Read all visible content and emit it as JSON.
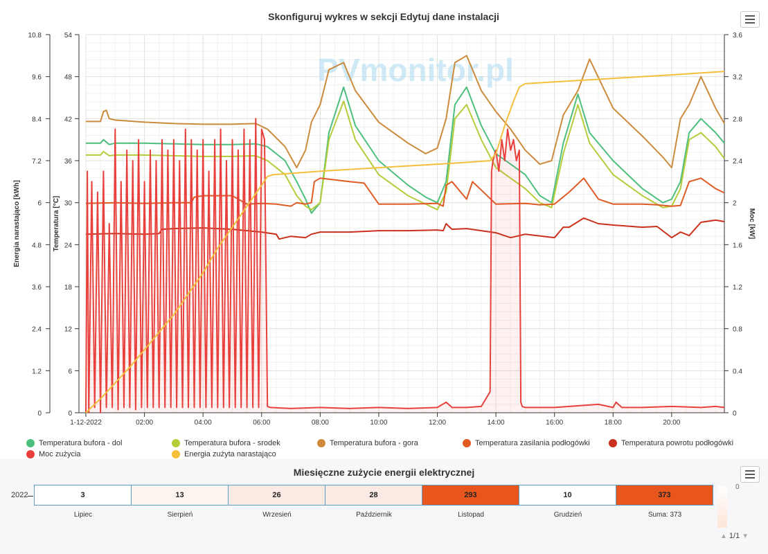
{
  "main_chart": {
    "title": "Skonfiguruj wykres w sekcji Edytuj dane instalacji",
    "watermark": "PVmonitor.pl",
    "left_axis_label": "Energia narastająco [kWh]",
    "temp_axis_label": "Temperatura [°C]",
    "right_axis_label": "Moc [kW]",
    "menu_icon": "hamburger-menu-icon"
  },
  "chart_data": [
    {
      "type": "line",
      "title": "Skonfiguruj wykres w sekcji Edytuj dane instalacji",
      "x_unit": "hour",
      "xlim": [
        0,
        21.8
      ],
      "x_tick_labels": [
        "1-12-2022",
        "02:00",
        "04:00",
        "06:00",
        "08:00",
        "10:00",
        "12:00",
        "14:00",
        "16:00",
        "18:00",
        "20:00"
      ],
      "axes": {
        "energy": {
          "label": "Energia narastająco [kWh]",
          "ylim": [
            0,
            10.8
          ],
          "ticks": [
            "0",
            "1.2",
            "2.4",
            "3.6",
            "4.8",
            "6",
            "7.2",
            "8.4",
            "9.6",
            "10.8"
          ]
        },
        "temperature": {
          "label": "Temperatura [°C]",
          "ylim": [
            0,
            54
          ],
          "ticks": [
            "0",
            "6",
            "12",
            "18",
            "24",
            "30",
            "36",
            "42",
            "48",
            "54"
          ]
        },
        "power": {
          "label": "Moc [kW]",
          "ylim": [
            0,
            3.6
          ],
          "ticks": [
            "0",
            "0.4",
            "0.8",
            "1.2",
            "1.6",
            "2",
            "2.4",
            "2.8",
            "3.2",
            "3.6"
          ]
        }
      },
      "grid": true,
      "legend_position": "bottom",
      "series": [
        {
          "name": "Temperatura bufora - dol",
          "axis": "temperature",
          "color": "#4cbf7f",
          "x": [
            0,
            0.5,
            0.6,
            0.8,
            1,
            2,
            3,
            4,
            5,
            5.8,
            6.2,
            6.8,
            7.2,
            7.5,
            7.7,
            8,
            8.3,
            8.8,
            9.2,
            10,
            11,
            11.6,
            12,
            12.3,
            12.6,
            13,
            13.5,
            14,
            14.5,
            15,
            15.5,
            15.9,
            16.3,
            16.8,
            17.2,
            18,
            19,
            19.7,
            20,
            20.3,
            20.6,
            21,
            21.5,
            21.8
          ],
          "y": [
            38.5,
            38.5,
            39,
            38.3,
            38.5,
            38.5,
            38.4,
            38.3,
            38.3,
            38.4,
            38,
            36,
            33,
            30.5,
            28.5,
            30,
            40,
            46.5,
            41,
            36,
            32.5,
            30.8,
            30,
            33,
            44,
            46.5,
            41,
            37,
            35.5,
            34,
            31,
            30,
            38.5,
            45.5,
            40,
            36,
            32,
            30,
            30.5,
            33,
            40,
            42,
            40,
            38.5
          ]
        },
        {
          "name": "Temperatura bufora - srodek",
          "axis": "temperature",
          "color": "#b5cc3a",
          "x": [
            0,
            0.5,
            0.6,
            0.8,
            1,
            2,
            3,
            4,
            5,
            5.8,
            6.2,
            6.8,
            7.2,
            7.5,
            7.7,
            8,
            8.3,
            8.8,
            9.2,
            10,
            11,
            11.6,
            12,
            12.3,
            12.6,
            13,
            13.5,
            14,
            14.5,
            15,
            15.5,
            15.9,
            16.3,
            16.8,
            17.2,
            18,
            19,
            19.7,
            20,
            20.3,
            20.6,
            21,
            21.5,
            21.8
          ],
          "y": [
            36.8,
            36.8,
            37.3,
            36.7,
            36.8,
            36.8,
            36.7,
            36.6,
            36.6,
            36.7,
            36,
            34,
            31,
            29.5,
            29,
            30,
            39,
            44.5,
            39,
            34,
            31,
            29.8,
            29,
            31.5,
            42,
            44,
            39,
            35,
            33.5,
            32,
            30,
            29.3,
            37,
            44,
            38.5,
            34,
            31,
            29.3,
            29.5,
            32,
            39,
            40,
            38,
            36.3
          ]
        },
        {
          "name": "Temperatura bufora - gora",
          "axis": "temperature",
          "color": "#cc8b3c",
          "x": [
            0,
            0.5,
            0.6,
            0.7,
            0.8,
            1,
            2,
            3,
            4,
            5,
            5.8,
            6.2,
            6.8,
            7.2,
            7.5,
            7.7,
            8,
            8.3,
            8.8,
            9.2,
            10,
            11,
            11.6,
            12,
            12.3,
            12.6,
            13,
            13.5,
            14,
            14.5,
            15,
            15.5,
            15.9,
            16.3,
            16.8,
            17.2,
            18,
            19,
            19.7,
            20,
            20.3,
            20.6,
            21,
            21.5,
            21.8
          ],
          "y": [
            41.6,
            41.6,
            43,
            43.2,
            42,
            41.8,
            41.5,
            41.3,
            41.2,
            41.2,
            41.3,
            40.5,
            38,
            35,
            37.5,
            41.5,
            44,
            49,
            50,
            46,
            41.5,
            38.5,
            37,
            37.8,
            42,
            50,
            51,
            46,
            43,
            40.5,
            37.5,
            35.5,
            36,
            42.5,
            46,
            50.5,
            43.5,
            39.5,
            36.5,
            35,
            42,
            44,
            48,
            43.5,
            41.3
          ]
        },
        {
          "name": "Temperatura zasilania podłogówki",
          "axis": "temperature",
          "color": "#e05a24",
          "x": [
            0,
            1,
            2,
            3,
            3.6,
            3.7,
            4,
            5,
            5.5,
            6,
            6.5,
            7,
            7.2,
            7.5,
            7.7,
            7.8,
            8,
            9,
            9.5,
            10,
            11,
            12,
            12.2,
            12.3,
            12.5,
            13,
            13.2,
            14,
            15,
            15.5,
            16,
            16.5,
            17,
            17.5,
            18,
            19,
            19.5,
            20,
            20.3,
            20.6,
            21,
            21.5,
            21.8
          ],
          "y": [
            29.9,
            30,
            29.9,
            30,
            30,
            30.8,
            31,
            31,
            29.8,
            29.9,
            29.8,
            29.5,
            30,
            29.8,
            30,
            33,
            33.5,
            33,
            32.8,
            29.8,
            29.8,
            29.9,
            29.5,
            32.5,
            33,
            30.5,
            33,
            29.8,
            29.9,
            29.7,
            29.8,
            31.5,
            33.5,
            30.5,
            29.8,
            29.8,
            29.7,
            29.5,
            29.6,
            33,
            33.5,
            32,
            31.4
          ]
        },
        {
          "name": "Temperatura powrotu podłogówki",
          "axis": "temperature",
          "color": "#c9301d",
          "x": [
            0,
            1,
            2,
            2.5,
            2.6,
            3,
            4,
            5,
            6,
            6.5,
            6.6,
            7,
            7.5,
            7.7,
            8,
            9,
            10,
            11,
            12,
            12.2,
            12.3,
            12.5,
            13,
            14,
            14.5,
            15,
            16,
            16.3,
            16.5,
            17,
            17.5,
            18,
            19,
            19.5,
            20,
            20.3,
            20.6,
            21,
            21.5,
            21.8
          ],
          "y": [
            25.5,
            25.6,
            25.5,
            25.6,
            26.2,
            26.3,
            26.4,
            26.2,
            25.8,
            25.5,
            24.8,
            25.2,
            25,
            25.5,
            25.8,
            25.8,
            26,
            26,
            26.1,
            26,
            27,
            26.2,
            26.3,
            25.7,
            25,
            25.5,
            25,
            26.5,
            26.5,
            27.8,
            27,
            26.8,
            26.5,
            26.6,
            25,
            25.8,
            25.3,
            27.2,
            27.5,
            27.3
          ]
        },
        {
          "name": "Moc zużycia",
          "axis": "power",
          "color": "#e8403c",
          "x": [
            0,
            0.05,
            0.1,
            0.2,
            0.3,
            0.4,
            0.5,
            0.6,
            0.7,
            0.8,
            0.9,
            1.0,
            1.1,
            1.2,
            1.3,
            1.4,
            1.5,
            1.6,
            1.7,
            1.8,
            1.9,
            2.0,
            2.1,
            2.2,
            2.3,
            2.4,
            2.5,
            2.6,
            2.7,
            2.8,
            2.9,
            3.0,
            3.1,
            3.2,
            3.3,
            3.4,
            3.5,
            3.6,
            3.7,
            3.8,
            3.9,
            4.0,
            4.1,
            4.2,
            4.3,
            4.4,
            4.5,
            4.6,
            4.7,
            4.8,
            4.9,
            5.0,
            5.1,
            5.2,
            5.3,
            5.4,
            5.5,
            5.6,
            5.7,
            5.8,
            5.9,
            6.0,
            6.1,
            6.2,
            6.3,
            7,
            8,
            9,
            10,
            11,
            12,
            12.3,
            12.5,
            13,
            13.5,
            13.8,
            13.85,
            13.9,
            14.0,
            14.1,
            14.2,
            14.3,
            14.4,
            14.5,
            14.6,
            14.7,
            14.8,
            14.85,
            14.9,
            15,
            16,
            17,
            17.5,
            18,
            18.1,
            18.3,
            19,
            20,
            21,
            21.5,
            21.8
          ],
          "y": [
            0,
            2.3,
            0,
            2.2,
            0.05,
            2.1,
            0,
            2.3,
            0.05,
            1.8,
            0.05,
            2.7,
            0.03,
            2.2,
            0.05,
            2.5,
            0.05,
            2.4,
            0.03,
            2.6,
            0.05,
            2.2,
            0.05,
            2.5,
            0.05,
            2.4,
            0.05,
            2.6,
            0.05,
            2.5,
            0.05,
            2.6,
            0.05,
            2.4,
            0.05,
            2.7,
            0.05,
            2.6,
            0.05,
            2.5,
            0.05,
            2.6,
            0.05,
            2.3,
            0.05,
            2.6,
            0.05,
            2.7,
            0.05,
            2.4,
            0.05,
            2.6,
            0.05,
            2.5,
            0.05,
            2.7,
            0.05,
            2.6,
            0.05,
            2.8,
            0.05,
            2.7,
            2.6,
            0.06,
            0.05,
            0.04,
            0.05,
            0.04,
            0.05,
            0.04,
            0.05,
            0.1,
            0.05,
            0.05,
            0.06,
            0.2,
            2.3,
            2.4,
            2.5,
            2.3,
            2.6,
            2.4,
            2.7,
            2.5,
            2.6,
            2.4,
            2.5,
            0.1,
            0.06,
            0.05,
            0.05,
            0.07,
            0.08,
            0.05,
            0.1,
            0.05,
            0.05,
            0.06,
            0.05,
            0.06,
            0.05
          ]
        },
        {
          "name": "Energia zużyta narastająco",
          "axis": "energy",
          "color": "#f5bf3c",
          "x": [
            0,
            0.5,
            1,
            1.5,
            2,
            2.5,
            3,
            3.5,
            4,
            4.5,
            5,
            5.5,
            6,
            6.2,
            6.4,
            8,
            10,
            12,
            13,
            13.8,
            14.0,
            14.3,
            14.6,
            14.8,
            15,
            16,
            18,
            20,
            21.8
          ],
          "y": [
            0,
            0.4,
            0.85,
            1.3,
            1.8,
            2.3,
            2.8,
            3.4,
            4,
            4.7,
            5.3,
            5.9,
            6.5,
            6.75,
            6.8,
            6.9,
            7.0,
            7.1,
            7.15,
            7.2,
            7.4,
            8.2,
            8.9,
            9.3,
            9.4,
            9.45,
            9.55,
            9.65,
            9.75
          ]
        }
      ]
    },
    {
      "type": "heatmap",
      "title": "Miesięczne zużycie energii elektrycznej",
      "y_categories": [
        "2022"
      ],
      "categories": [
        "Lipiec",
        "Sierpień",
        "Wrzesień",
        "Październik",
        "Listopad",
        "Grudzień",
        "Suma: 373"
      ],
      "values": [
        3,
        13,
        26,
        28,
        293,
        10,
        373
      ],
      "cell_colors": [
        "#ffffff",
        "#fdf4f0",
        "#fbeae3",
        "#fbeae3",
        "#e8561e",
        "#ffffff",
        "#e8561e"
      ]
    }
  ],
  "monthly_panel": {
    "title": "Miesięczne zużycie energii elektrycznej",
    "year": "2022",
    "color_axis_tick": "0",
    "menu_icon": "hamburger-menu-icon",
    "pager": {
      "text": "1/1",
      "prev_icon": "triangle-up-icon",
      "next_icon": "triangle-down-icon"
    }
  }
}
